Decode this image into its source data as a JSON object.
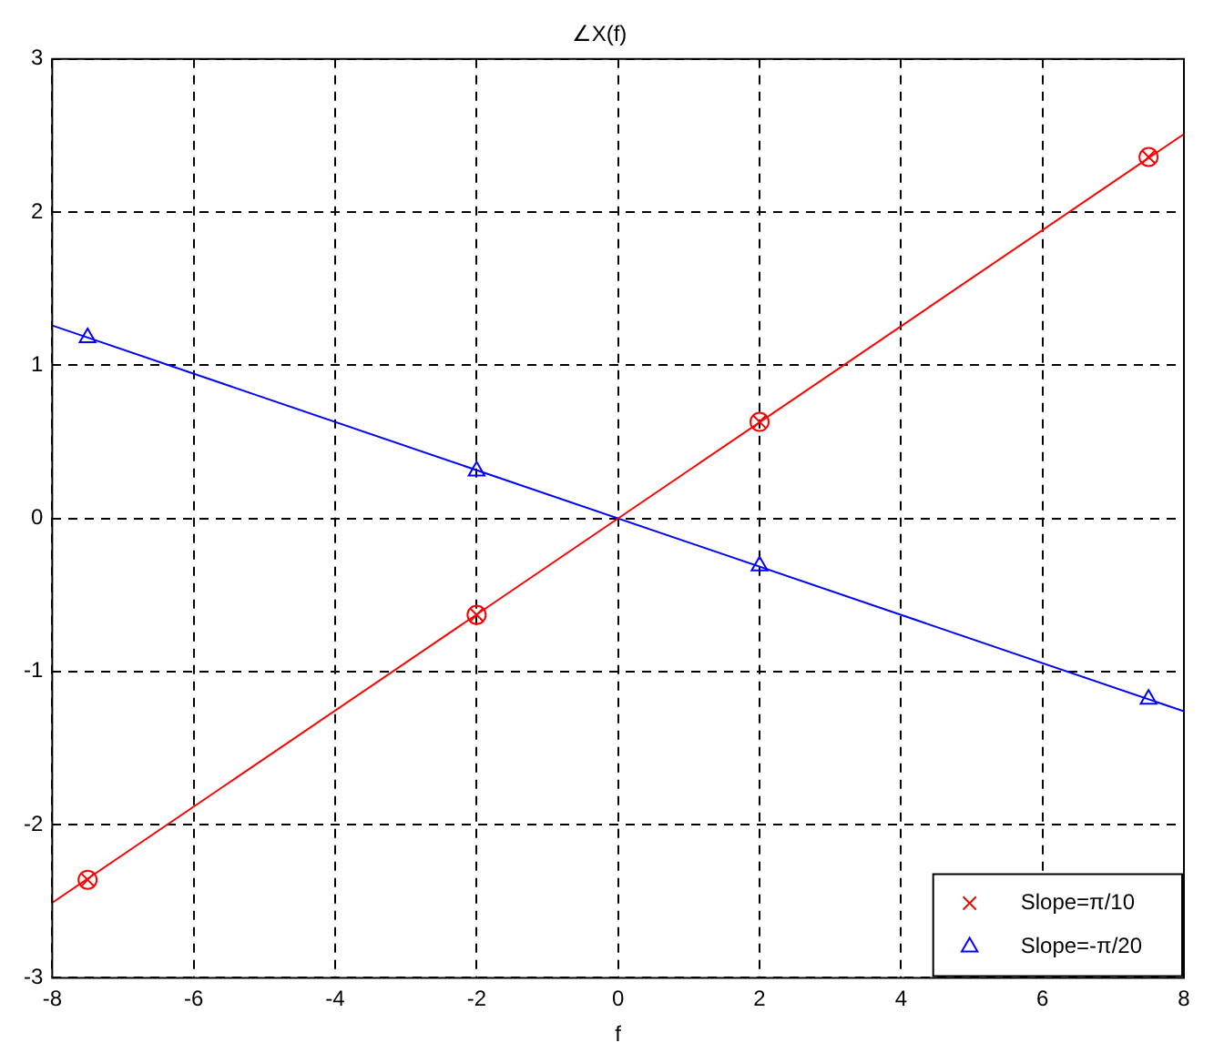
{
  "chart_data": {
    "type": "line",
    "title": "∠X(f)",
    "xlabel": "f",
    "xlim": [
      -8,
      8
    ],
    "xticks": [
      -8,
      -6,
      -4,
      -2,
      0,
      2,
      4,
      6,
      8
    ],
    "ylim": [
      -3,
      3
    ],
    "yticks": [
      -3,
      -2,
      -1,
      0,
      1,
      2,
      3
    ],
    "grid": true,
    "legend": "bottom right",
    "line_style": "solid",
    "series": [
      {
        "type": "line",
        "color": "#ff0000",
        "x": [
          -8,
          8
        ],
        "values": [
          -2.51,
          2.51
        ],
        "marker": "none"
      },
      {
        "type": "scatter",
        "name": "Slope=π/10",
        "color": "#ff0000",
        "x": [
          -7.5,
          -2,
          2,
          7.5
        ],
        "values": [
          -2.36,
          -0.63,
          0.63,
          2.36
        ],
        "marker": "cross"
      },
      {
        "type": "scatter",
        "color": "#ff0000",
        "x": [
          -7.5,
          -2,
          2,
          7.5
        ],
        "values": [
          -2.36,
          -0.63,
          0.63,
          2.36
        ],
        "marker": "circle"
      },
      {
        "type": "line",
        "color": "#0000ff",
        "x": [
          -8,
          8
        ],
        "values": [
          1.26,
          -1.26
        ],
        "marker": "none"
      },
      {
        "type": "scatter",
        "name": "Slope=-π/20",
        "color": "#0000ff",
        "x": [
          -7.5,
          -2,
          2,
          7.5
        ],
        "values": [
          1.18,
          0.31,
          -0.31,
          -1.18
        ],
        "marker": "triangle"
      }
    ]
  }
}
